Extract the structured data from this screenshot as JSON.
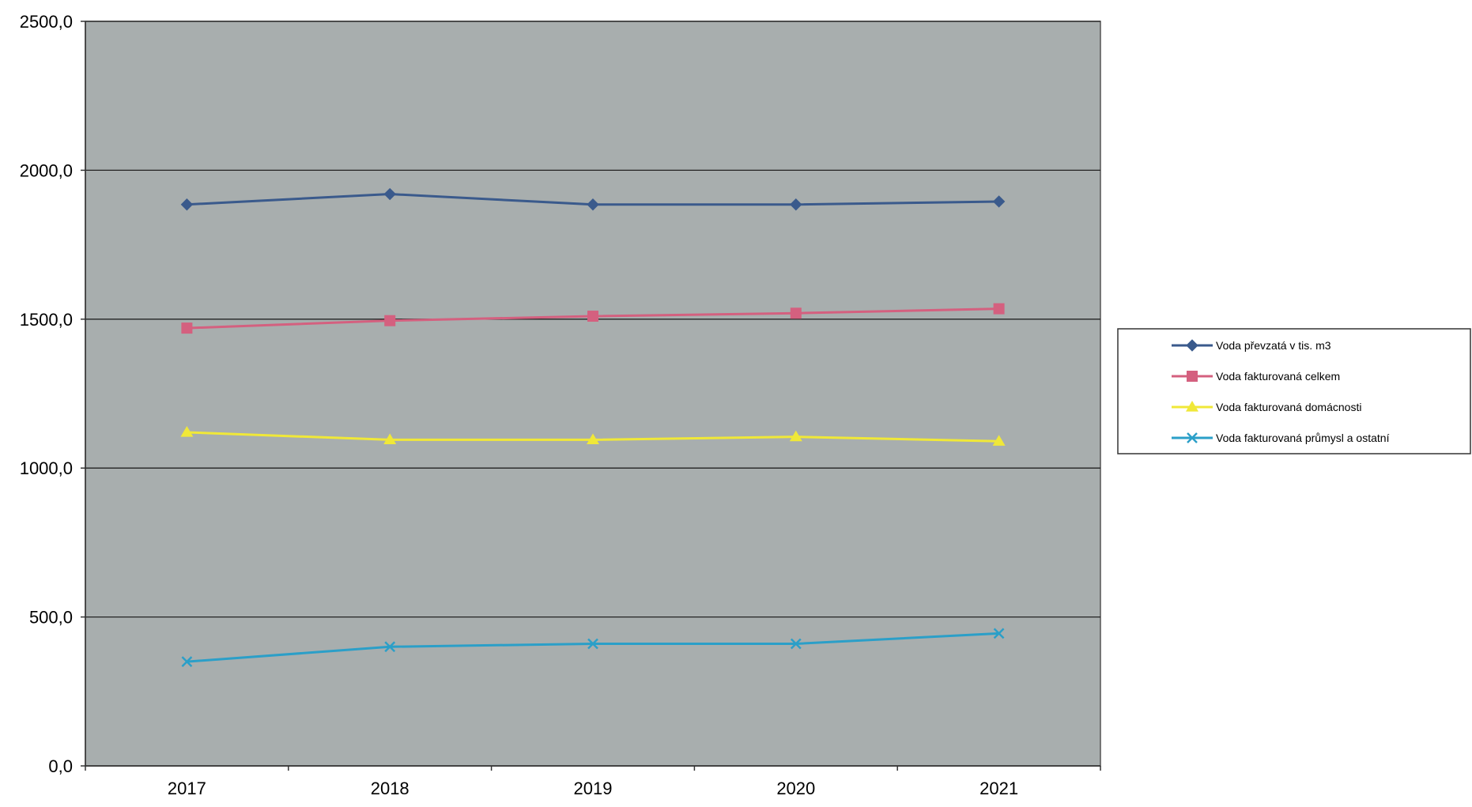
{
  "chart_data": {
    "type": "line",
    "title": "",
    "xlabel": "",
    "ylabel": "",
    "categories": [
      "2017",
      "2018",
      "2019",
      "2020",
      "2021"
    ],
    "ylim": [
      0,
      2500
    ],
    "yticks": [
      0,
      500,
      1000,
      1500,
      2000,
      2500
    ],
    "ytick_labels": [
      "0,0",
      "500,0",
      "1000,0",
      "1500,0",
      "2000,0",
      "2500,0"
    ],
    "grid": true,
    "legend_position": "right",
    "plot_background": "#a8aeae",
    "series": [
      {
        "name": "Voda převzatá v  tis. m3",
        "values": [
          1885,
          1920,
          1885,
          1885,
          1895
        ],
        "color": "#3a5a8c",
        "marker": "diamond"
      },
      {
        "name": "Voda fakturovaná celkem",
        "values": [
          1470,
          1495,
          1510,
          1520,
          1535
        ],
        "color": "#d4607f",
        "marker": "square"
      },
      {
        "name": "Voda fakturovaná domácnosti",
        "values": [
          1120,
          1095,
          1095,
          1105,
          1090
        ],
        "color": "#f0e838",
        "marker": "triangle"
      },
      {
        "name": "Voda fakturovaná průmysl a ostatní",
        "values": [
          350,
          400,
          410,
          410,
          445
        ],
        "color": "#2b9fc8",
        "marker": "x"
      }
    ]
  }
}
